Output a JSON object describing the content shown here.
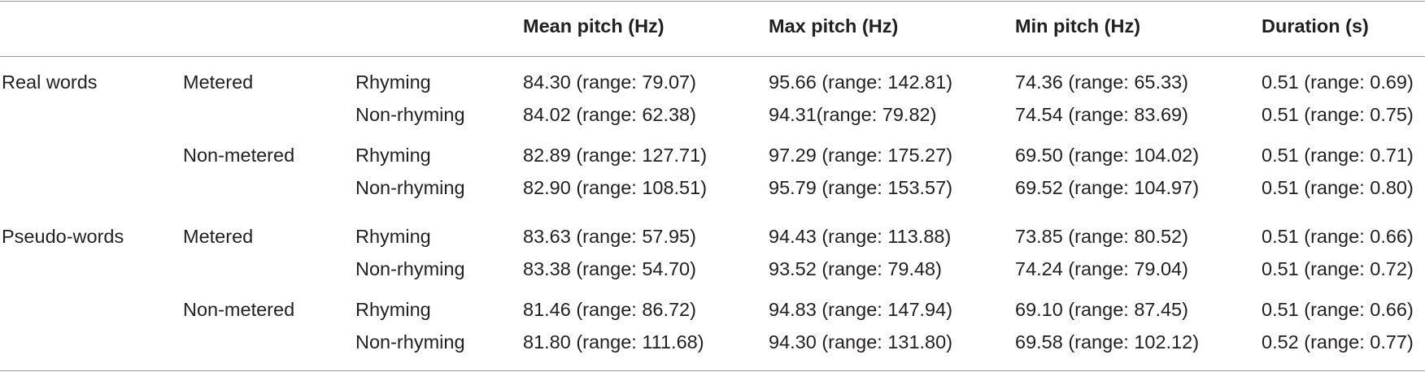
{
  "headers": {
    "mean": "Mean pitch (Hz)",
    "max": "Max pitch (Hz)",
    "min": "Min pitch (Hz)",
    "duration": "Duration (s)"
  },
  "rows": [
    {
      "group": "Real words",
      "meter": "Metered",
      "rhyme": "Rhyming",
      "mean": "84.30 (range: 79.07)",
      "max": "95.66 (range: 142.81)",
      "min": "74.36 (range: 65.33)",
      "duration": "0.51 (range: 0.69)"
    },
    {
      "group": "",
      "meter": "",
      "rhyme": "Non-rhyming",
      "mean": "84.02 (range: 62.38)",
      "max": "94.31(range: 79.82)",
      "min": "74.54 (range: 83.69)",
      "duration": "0.51 (range: 0.75)"
    },
    {
      "group": "",
      "meter": "Non-metered",
      "rhyme": "Rhyming",
      "mean": "82.89 (range: 127.71)",
      "max": "97.29 (range: 175.27)",
      "min": "69.50 (range: 104.02)",
      "duration": "0.51 (range: 0.71)"
    },
    {
      "group": "",
      "meter": "",
      "rhyme": "Non-rhyming",
      "mean": "82.90 (range: 108.51)",
      "max": "95.79 (range: 153.57)",
      "min": "69.52 (range: 104.97)",
      "duration": "0.51 (range: 0.80)"
    },
    {
      "group": "Pseudo-words",
      "meter": "Metered",
      "rhyme": "Rhyming",
      "mean": "83.63 (range: 57.95)",
      "max": "94.43 (range: 113.88)",
      "min": "73.85 (range: 80.52)",
      "duration": "0.51 (range: 0.66)"
    },
    {
      "group": "",
      "meter": "",
      "rhyme": "Non-rhyming",
      "mean": "83.38 (range: 54.70)",
      "max": "93.52 (range: 79.48)",
      "min": "74.24 (range: 79.04)",
      "duration": "0.51 (range: 0.72)"
    },
    {
      "group": "",
      "meter": "Non-metered",
      "rhyme": "Rhyming",
      "mean": "81.46 (range: 86.72)",
      "max": "94.83 (range: 147.94)",
      "min": "69.10 (range: 87.45)",
      "duration": "0.51 (range: 0.66)"
    },
    {
      "group": "",
      "meter": "",
      "rhyme": "Non-rhyming",
      "mean": "81.80 (range: 111.68)",
      "max": "94.30 (range: 131.80)",
      "min": "69.58 (range: 102.12)",
      "duration": "0.52 (range: 0.77)"
    }
  ]
}
